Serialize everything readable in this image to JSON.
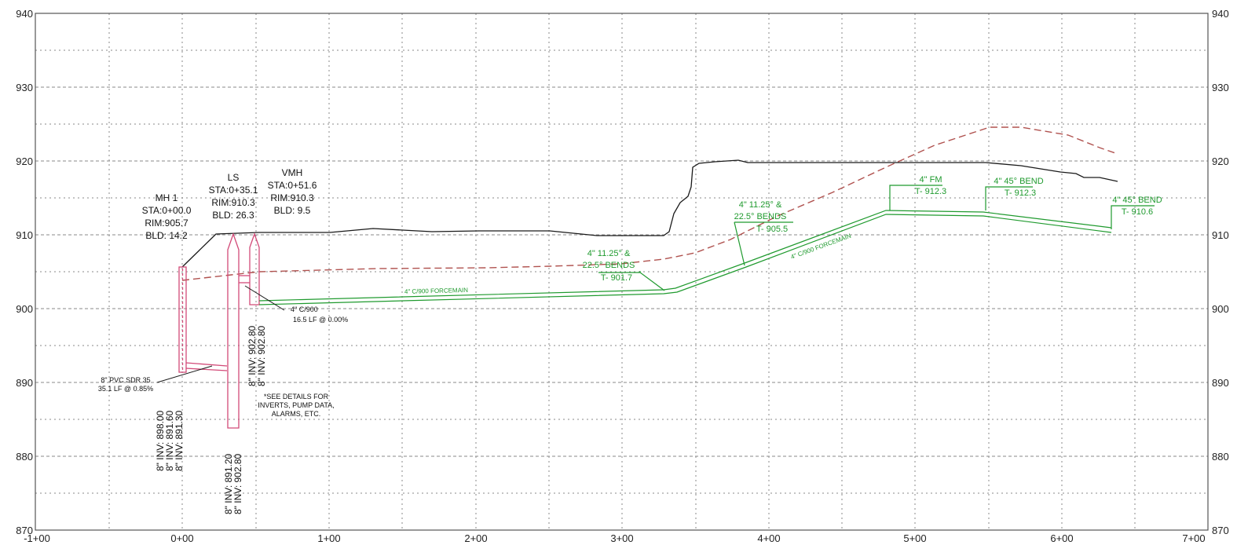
{
  "y_axis_left": [
    "940",
    "930",
    "920",
    "910",
    "900",
    "890",
    "880",
    "870"
  ],
  "y_axis_right": [
    "940",
    "930",
    "920",
    "910",
    "900",
    "890",
    "880",
    "870"
  ],
  "x_axis": [
    "-1+00",
    "0+00",
    "1+00",
    "2+00",
    "3+00",
    "4+00",
    "5+00",
    "6+00",
    "7+00"
  ],
  "structures": {
    "mh1": {
      "line1": "MH 1",
      "line2": "STA:0+00.0",
      "line3": "RIM:905.7",
      "line4": "BLD: 14.2",
      "inv1": "8\" INV: 898.00",
      "inv2": "8\" INV: 891.60",
      "inv3": "8\" INV: 891.30"
    },
    "ls": {
      "line1": "LS",
      "line2": "STA:0+35.1",
      "line3": "RIM:910.3",
      "line4": "BLD: 26.3",
      "inv1": "8\" INV: 891.20",
      "inv2": "8\" INV: 902.80"
    },
    "vmh": {
      "line1": "VMH",
      "line2": "STA:0+51.6",
      "line3": "RIM:910.3",
      "line4": "BLD: 9.5",
      "inv1": "8\" INV: 902.80",
      "inv2": "8\" INV: 902.80"
    }
  },
  "pipe_labels": {
    "pvc_line1": "8\" PVC SDR 35",
    "pvc_line2": "35.1 LF @ 0.85%",
    "c900_line1": "4\" C/900",
    "c900_line2": "16.5 LF @ 0.00%",
    "note_line1": "*SEE DETAILS FOR",
    "note_line2": "INVERTS, PUMP DATA,",
    "note_line3": "ALARMS, ETC."
  },
  "forcemain": {
    "fm_label_1": "4\" C/900 FORCEMAIN",
    "fm_label_2": "4\" C/900 FORCEMAIN",
    "bend1_line1": "4\" 11.25° &",
    "bend1_line2": "22.5° BENDS",
    "bend1_line3": "T- 901.7",
    "bend2_line1": "4\" 11.25° &",
    "bend2_line2": "22.5° BENDS",
    "bend2_line3": "T- 905.5",
    "fm_top_line1": "4\" FM",
    "fm_top_line2": "T- 912.3",
    "bend3_line1": "4\" 45° BEND",
    "bend3_line2": "T- 912.3",
    "bend4_line1": "4\" 45° BEND",
    "bend4_line2": "T- 910.6"
  },
  "colors": {
    "grid": "#8a8a8a",
    "existing_ground": "#1a1a1a",
    "proposed_ground": "#b0524f",
    "forcemain": "#1f9a2e",
    "structure": "#d24a78"
  }
}
